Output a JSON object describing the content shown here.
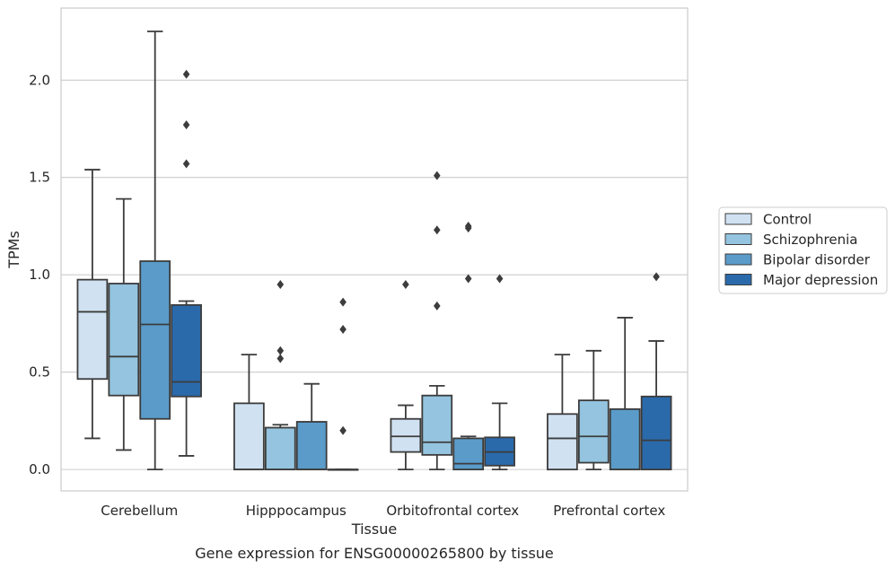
{
  "chart_data": {
    "type": "box",
    "xlabel": "Tissue",
    "ylabel": "TPMs",
    "caption": "Gene expression for ENSG00000265800 by tissue",
    "ylim": [
      -0.11,
      2.37
    ],
    "yticks": [
      0.0,
      0.5,
      1.0,
      1.5,
      2.0
    ],
    "ytick_labels": [
      "0.0",
      "0.5",
      "1.0",
      "1.5",
      "2.0"
    ],
    "grid": "horizontal",
    "legend_position": "right",
    "categories": [
      "Cerebellum",
      "Hipppocampus",
      "Orbitofrontal cortex",
      "Prefrontal cortex"
    ],
    "series": [
      {
        "name": "Control",
        "color": "#d0e1f2",
        "boxes": [
          {
            "whislo": 0.16,
            "q1": 0.465,
            "med": 0.81,
            "q3": 0.975,
            "whishi": 1.54,
            "fliers": []
          },
          {
            "whislo": 0.0,
            "q1": 0.0,
            "med": 0.0,
            "q3": 0.34,
            "whishi": 0.59,
            "fliers": []
          },
          {
            "whislo": 0.0,
            "q1": 0.09,
            "med": 0.17,
            "q3": 0.26,
            "whishi": 0.33,
            "fliers": [
              0.95
            ]
          },
          {
            "whislo": 0.0,
            "q1": 0.0,
            "med": 0.16,
            "q3": 0.285,
            "whishi": 0.59,
            "fliers": []
          }
        ]
      },
      {
        "name": "Schizophrenia",
        "color": "#94c4df",
        "boxes": [
          {
            "whislo": 0.1,
            "q1": 0.38,
            "med": 0.58,
            "q3": 0.955,
            "whishi": 1.39,
            "fliers": []
          },
          {
            "whislo": 0.0,
            "q1": 0.0,
            "med": 0.0,
            "q3": 0.215,
            "whishi": 0.23,
            "fliers": [
              0.57,
              0.61,
              0.95
            ]
          },
          {
            "whislo": 0.0,
            "q1": 0.075,
            "med": 0.14,
            "q3": 0.38,
            "whishi": 0.43,
            "fliers": [
              0.84,
              1.23,
              1.51
            ]
          },
          {
            "whislo": 0.0,
            "q1": 0.035,
            "med": 0.17,
            "q3": 0.355,
            "whishi": 0.61,
            "fliers": []
          }
        ]
      },
      {
        "name": "Bipolar disorder",
        "color": "#5a9bc9",
        "boxes": [
          {
            "whislo": 0.0,
            "q1": 0.26,
            "med": 0.745,
            "q3": 1.07,
            "whishi": 2.25,
            "fliers": []
          },
          {
            "whislo": 0.0,
            "q1": 0.0,
            "med": 0.0,
            "q3": 0.245,
            "whishi": 0.44,
            "fliers": []
          },
          {
            "whislo": 0.0,
            "q1": 0.0,
            "med": 0.03,
            "q3": 0.16,
            "whishi": 0.17,
            "fliers": [
              0.98,
              1.24,
              1.25
            ]
          },
          {
            "whislo": 0.0,
            "q1": 0.0,
            "med": 0.0,
            "q3": 0.31,
            "whishi": 0.78,
            "fliers": []
          }
        ]
      },
      {
        "name": "Major depression",
        "color": "#2a6aab",
        "boxes": [
          {
            "whislo": 0.07,
            "q1": 0.375,
            "med": 0.45,
            "q3": 0.845,
            "whishi": 0.865,
            "fliers": [
              1.57,
              1.77,
              2.03
            ]
          },
          {
            "whislo": 0.0,
            "q1": 0.0,
            "med": 0.0,
            "q3": 0.0,
            "whishi": 0.0,
            "fliers": [
              0.2,
              0.72,
              0.86
            ]
          },
          {
            "whislo": 0.0,
            "q1": 0.02,
            "med": 0.09,
            "q3": 0.165,
            "whishi": 0.34,
            "fliers": [
              0.98
            ]
          },
          {
            "whislo": 0.0,
            "q1": 0.0,
            "med": 0.15,
            "q3": 0.375,
            "whishi": 0.66,
            "fliers": [
              0.99
            ]
          }
        ]
      }
    ]
  }
}
